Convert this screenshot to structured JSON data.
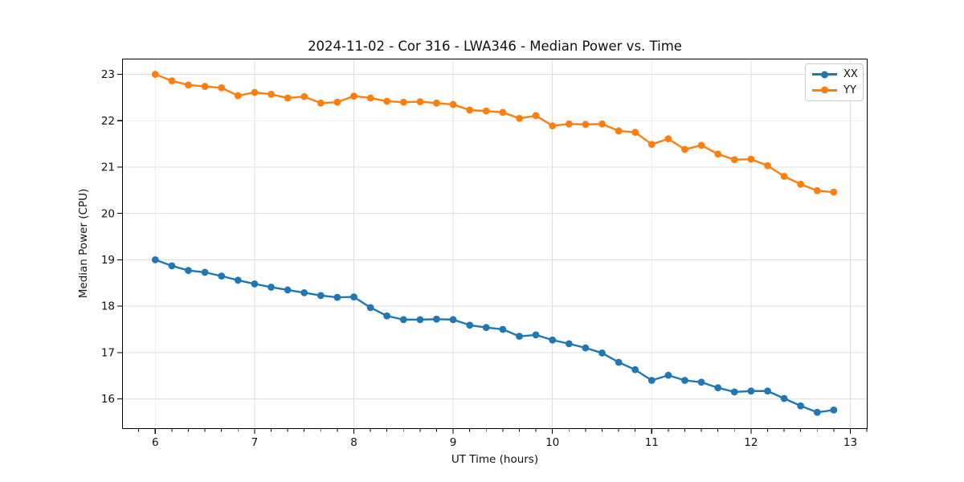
{
  "chart_data": {
    "type": "line",
    "title": "2024-11-02 - Cor 316 - LWA346 - Median Power vs. Time",
    "xlabel": "UT Time (hours)",
    "ylabel": "Median Power (CPU)",
    "xlim": [
      5.67,
      13.17
    ],
    "ylim": [
      15.36,
      23.33
    ],
    "xticks": [
      6,
      7,
      8,
      9,
      10,
      11,
      12,
      13
    ],
    "yticks": [
      16,
      17,
      18,
      19,
      20,
      21,
      22,
      23
    ],
    "x_minor_per_unit": 6,
    "grid": true,
    "legend_position": "upper right",
    "x": [
      6.0,
      6.167,
      6.333,
      6.5,
      6.667,
      6.833,
      7.0,
      7.167,
      7.333,
      7.5,
      7.667,
      7.833,
      8.0,
      8.167,
      8.333,
      8.5,
      8.667,
      8.833,
      9.0,
      9.167,
      9.333,
      9.5,
      9.667,
      9.833,
      10.0,
      10.167,
      10.333,
      10.5,
      10.667,
      10.833,
      11.0,
      11.167,
      11.333,
      11.5,
      11.667,
      11.833,
      12.0,
      12.167,
      12.333,
      12.5,
      12.667,
      12.833
    ],
    "series": [
      {
        "name": "XX",
        "color": "#1f77b4",
        "values": [
          19.0,
          18.87,
          18.77,
          18.73,
          18.65,
          18.56,
          18.48,
          18.41,
          18.35,
          18.29,
          18.23,
          18.19,
          18.2,
          17.97,
          17.79,
          17.71,
          17.71,
          17.72,
          17.71,
          17.59,
          17.54,
          17.5,
          17.35,
          17.38,
          17.27,
          17.19,
          17.1,
          16.99,
          16.79,
          16.63,
          16.4,
          16.51,
          16.4,
          16.36,
          16.24,
          16.15,
          16.17,
          16.17,
          16.01,
          15.85,
          15.71,
          15.76
        ]
      },
      {
        "name": "YY",
        "color": "#ff7f0e",
        "values": [
          23.0,
          22.86,
          22.77,
          22.74,
          22.71,
          22.54,
          22.61,
          22.57,
          22.49,
          22.52,
          22.38,
          22.4,
          22.53,
          22.49,
          22.42,
          22.4,
          22.41,
          22.38,
          22.35,
          22.23,
          22.21,
          22.18,
          22.05,
          22.11,
          21.89,
          21.93,
          21.92,
          21.93,
          21.78,
          21.75,
          21.49,
          21.61,
          21.38,
          21.47,
          21.28,
          21.16,
          21.17,
          21.03,
          20.8,
          20.63,
          20.49,
          20.46
        ]
      }
    ]
  },
  "colors": {
    "background": "#ffffff",
    "grid": "#dcdcdc",
    "spine": "#000000",
    "tick_text": "#111111"
  }
}
